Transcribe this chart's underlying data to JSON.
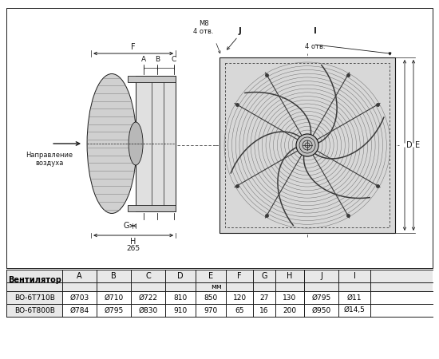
{
  "table_headers": [
    "Вентилятор",
    "A",
    "B",
    "C",
    "D",
    "E",
    "F",
    "G",
    "H",
    "J",
    "I"
  ],
  "table_row1": [
    "ВО-6Т710В",
    "Ø703",
    "Ø710",
    "Ø722",
    "810",
    "850",
    "120",
    "27",
    "130",
    "Ø795",
    "Ø11"
  ],
  "table_row2": [
    "ВО-6Т800В",
    "Ø784",
    "Ø795",
    "Ø830",
    "910",
    "970",
    "65",
    "16",
    "200",
    "Ø950",
    "Ø14,5"
  ],
  "mm_label": "мм",
  "arrow_label": "Направление\nвоздуха",
  "m8_label": "М8\n4 отв.",
  "i_label": "4 отв.",
  "dim_265": "265",
  "bg_color": "#ffffff",
  "line_color": "#1a1a1a",
  "gray_light": "#cccccc",
  "gray_mid": "#999999",
  "gray_dark": "#555555",
  "table_bg": "#e8e8e8"
}
